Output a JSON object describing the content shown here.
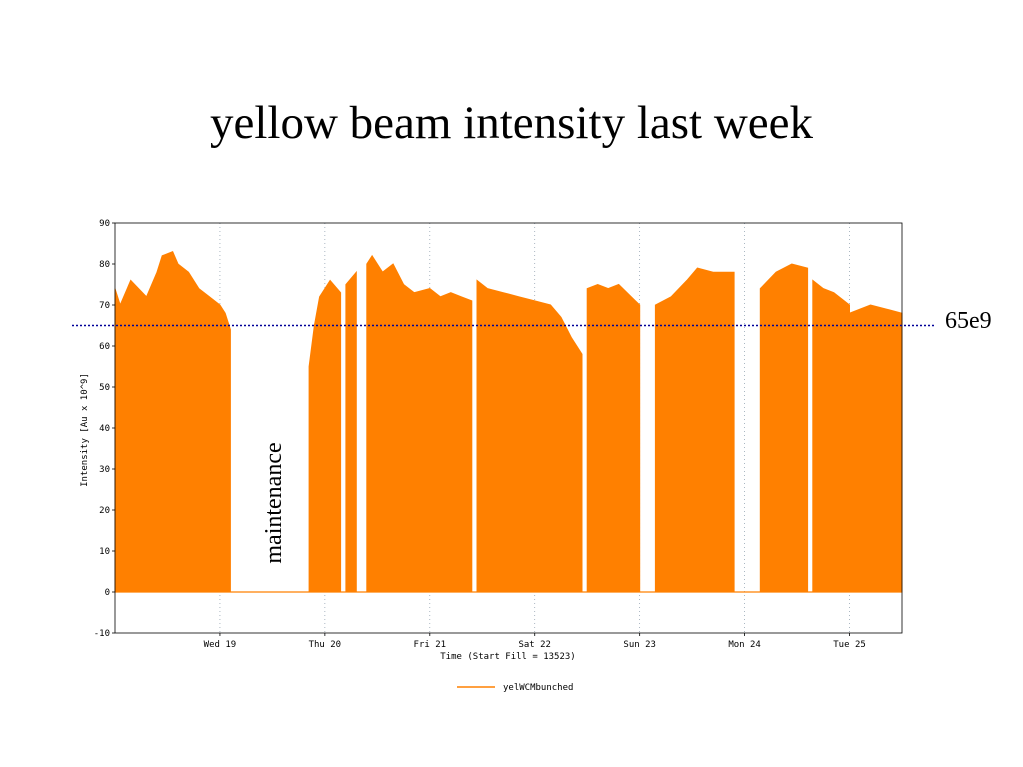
{
  "slide": {
    "title": "yellow beam intensity last week"
  },
  "chart_data": {
    "type": "area",
    "title": "",
    "xlabel": "Time (Start Fill = 13523)",
    "ylabel": "Intensity [Au x 10^9]",
    "ylim": [
      -10,
      90
    ],
    "yticks": [
      -10,
      0,
      10,
      20,
      30,
      40,
      50,
      60,
      70,
      80,
      90
    ],
    "xlim": [
      0,
      7.5
    ],
    "xticks": [
      {
        "label": "Wed 19",
        "x": 1.0
      },
      {
        "label": "Thu 20",
        "x": 2.0
      },
      {
        "label": "Fri 21",
        "x": 3.0
      },
      {
        "label": "Sat 22",
        "x": 4.0
      },
      {
        "label": "Sun 23",
        "x": 5.0
      },
      {
        "label": "Mon 24",
        "x": 6.0
      },
      {
        "label": "Tue 25",
        "x": 7.0
      }
    ],
    "grid": "vertical dotted at day ticks",
    "legend_position": "bottom",
    "series": [
      {
        "name": "yelWCMbunched",
        "color": "#ff8000",
        "segments": [
          {
            "x": [
              0.0,
              0.05,
              0.15,
              0.3,
              0.4,
              0.45,
              0.55,
              0.6,
              0.7,
              0.8,
              0.9,
              1.0,
              1.05,
              1.1
            ],
            "y": [
              74,
              70,
              76,
              72,
              78,
              82,
              83,
              80,
              78,
              74,
              72,
              70,
              68,
              64
            ]
          },
          {
            "x": [
              1.85,
              1.9,
              1.95,
              2.05,
              2.15
            ],
            "y": [
              55,
              65,
              72,
              76,
              73
            ]
          },
          {
            "x": [
              2.2,
              2.3
            ],
            "y": [
              75,
              78
            ]
          },
          {
            "x": [
              2.4,
              2.45,
              2.55,
              2.65,
              2.75,
              2.85,
              3.0,
              3.1,
              3.2,
              3.3,
              3.4
            ],
            "y": [
              80,
              82,
              78,
              80,
              75,
              73,
              74,
              72,
              73,
              72,
              71
            ]
          },
          {
            "x": [
              3.45,
              3.55,
              3.7,
              3.85,
              4.0,
              4.15,
              4.25,
              4.35,
              4.45
            ],
            "y": [
              76,
              74,
              73,
              72,
              71,
              70,
              67,
              62,
              58
            ]
          },
          {
            "x": [
              4.5,
              4.6,
              4.7,
              4.8,
              5.0
            ],
            "y": [
              74,
              75,
              74,
              75,
              70
            ]
          },
          {
            "x": [
              5.15,
              5.3,
              5.45,
              5.55,
              5.7,
              5.9
            ],
            "y": [
              70,
              72,
              76,
              79,
              78,
              78
            ]
          },
          {
            "x": [
              6.15,
              6.3,
              6.45,
              6.6
            ],
            "y": [
              74,
              78,
              80,
              79
            ]
          },
          {
            "x": [
              6.65,
              6.75,
              6.85,
              7.0
            ],
            "y": [
              76,
              74,
              73,
              70
            ]
          },
          {
            "x": [
              7.0,
              7.2,
              7.35,
              7.5
            ],
            "y": [
              68,
              70,
              69,
              68
            ]
          }
        ]
      }
    ],
    "reference_line": {
      "value": 65,
      "label": "65e9",
      "color": "#000099"
    },
    "annotations": [
      {
        "text": "maintenance",
        "x": 1.55,
        "y": 40
      }
    ]
  }
}
